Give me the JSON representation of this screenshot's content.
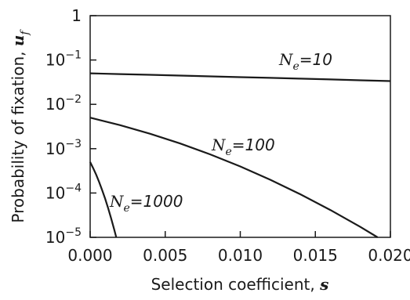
{
  "chart_data": {
    "type": "line",
    "xlabel": "Selection coefficient, ",
    "xlabel_var": "s",
    "ylabel": "Probability of fixation, ",
    "ylabel_var": "u",
    "ylabel_sub": "f",
    "xlim": [
      0,
      0.02
    ],
    "ylim_log10": [
      -5,
      0
    ],
    "yscale": "log",
    "grid": false,
    "x_ticks": [
      0,
      0.005,
      0.01,
      0.015,
      0.02
    ],
    "x_tick_labels": [
      "0.000",
      "0.005",
      "0.010",
      "0.015",
      "0.020"
    ],
    "y_ticks": [
      {
        "value": 1,
        "base": "1",
        "exp": ""
      },
      {
        "value": 0.1,
        "base": "10",
        "exp": "−1"
      },
      {
        "value": 0.01,
        "base": "10",
        "exp": "−2"
      },
      {
        "value": 0.001,
        "base": "10",
        "exp": "−3"
      },
      {
        "value": 0.0001,
        "base": "10",
        "exp": "−4"
      },
      {
        "value": 1e-05,
        "base": "10",
        "exp": "−5"
      }
    ],
    "series": [
      {
        "label_var": "N",
        "label_sub": "e",
        "label_rest": "=10",
        "x": [
          0,
          0.002,
          0.004,
          0.006,
          0.008,
          0.01,
          0.012,
          0.014,
          0.016,
          0.018,
          0.02
        ],
        "y": [
          0.05,
          0.0481,
          0.0463,
          0.0445,
          0.0428,
          0.0411,
          0.0395,
          0.0379,
          0.0364,
          0.0349,
          0.0335
        ]
      },
      {
        "label_var": "N",
        "label_sub": "e",
        "label_rest": "=100",
        "x": [
          0,
          0.002,
          0.004,
          0.006,
          0.008,
          0.01,
          0.012,
          0.014,
          0.016,
          0.018,
          0.02
        ],
        "y": [
          0.005,
          0.00339,
          0.00217,
          0.00131,
          0.000743,
          0.000397,
          0.000199,
          9.37e-05,
          4.14e-05,
          1.72e-05,
          6.7e-06
        ]
      },
      {
        "label_var": "N",
        "label_sub": "e",
        "label_rest": "=1000",
        "x": [
          0,
          0.0002,
          0.0004,
          0.0006,
          0.0008,
          0.001,
          0.0012,
          0.0014,
          0.0016,
          0.0018
        ],
        "y": [
          0.0005,
          0.000365,
          0.000258,
          0.000176,
          0.000116,
          7.38e-05,
          4.52e-05,
          2.67e-05,
          1.52e-05,
          8.35e-06
        ]
      }
    ]
  }
}
